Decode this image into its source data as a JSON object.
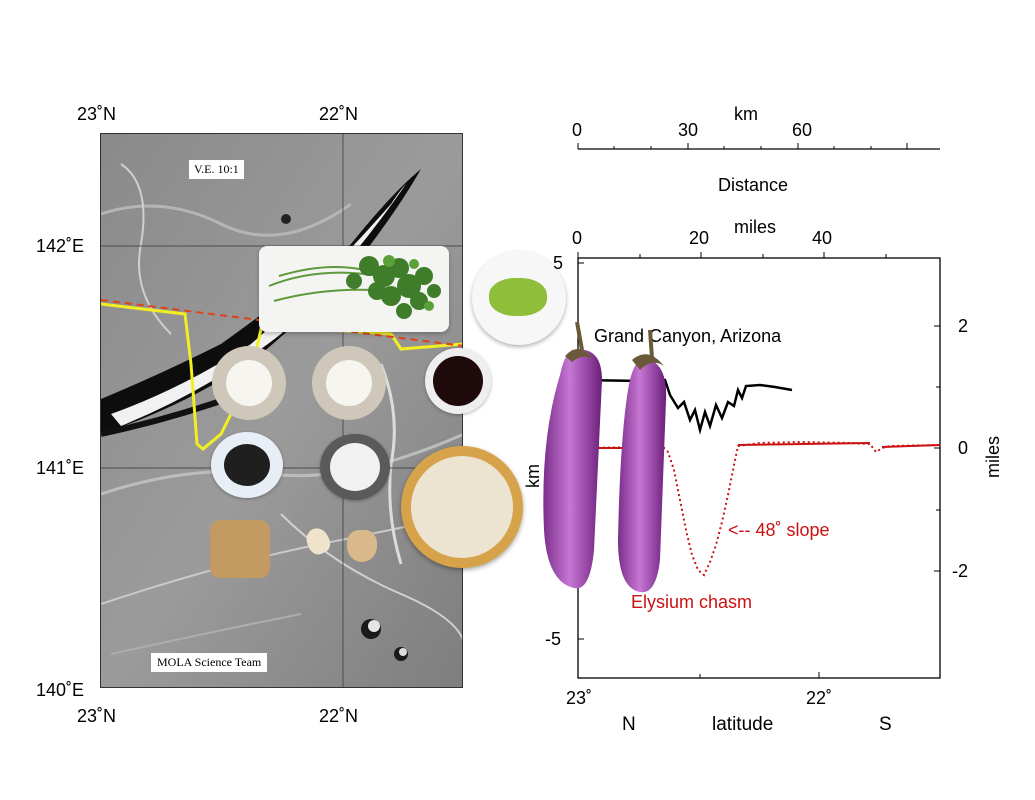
{
  "map_panel": {
    "top_labels": [
      "23˚N",
      "22˚N"
    ],
    "bottom_labels": [
      "23˚N",
      "22˚N"
    ],
    "left_labels": [
      "142˚E",
      "141˚E",
      "140˚E"
    ],
    "ve_label": "V.E. 10:1",
    "credit": "MOLA Science Team"
  },
  "profile_panel": {
    "km_scale": {
      "title": "km",
      "ticks": [
        "0",
        "30",
        "60"
      ],
      "caption": "Distance"
    },
    "miles_scale": {
      "title": "miles",
      "ticks": [
        "0",
        "20",
        "40"
      ]
    },
    "left_axis": {
      "ticks": [
        "5",
        "-5"
      ],
      "label": "km"
    },
    "right_axis": {
      "ticks": [
        "2",
        "0",
        "-2"
      ],
      "label": "miles"
    },
    "bottom_axis": {
      "ticks": [
        "23˚",
        "22˚"
      ],
      "label": "latitude",
      "left_dir": "N",
      "right_dir": "S"
    },
    "grand_canyon_label": "Grand Canyon, Arizona",
    "slope_label": "<-- 48˚ slope",
    "chasm_label": "Elysium chasm"
  },
  "colors": {
    "red": "#cc1111",
    "yellow": "#f2ee22",
    "black": "#000000"
  }
}
